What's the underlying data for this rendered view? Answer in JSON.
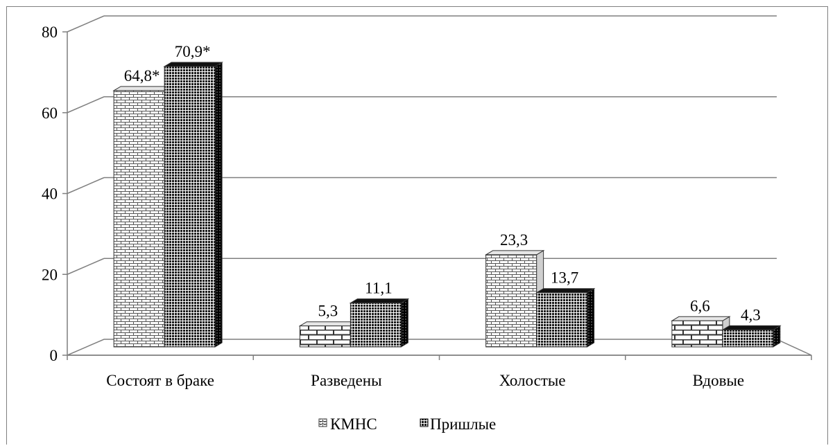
{
  "chart_data": {
    "type": "bar",
    "categories": [
      "Состоят в браке",
      "Разведены",
      "Холостые",
      "Вдовые"
    ],
    "series": [
      {
        "name": "КМНС",
        "values": [
          64.8,
          5.3,
          23.3,
          6.6
        ],
        "labels": [
          "64,8*",
          "5,3",
          "23,3",
          "6,6"
        ],
        "pattern": "brick-small"
      },
      {
        "name": "Пришлые",
        "values": [
          70.9,
          11.1,
          13.7,
          4.3
        ],
        "labels": [
          "70,9*",
          "11,1",
          "13,7",
          "4,3"
        ],
        "pattern": "dark-grid"
      }
    ],
    "yticks": [
      "0",
      "20",
      "40",
      "60",
      "80"
    ],
    "ylim": [
      0,
      80
    ],
    "grid": true,
    "legend_position": "bottom",
    "three_d": true
  },
  "legend": {
    "items": [
      "КМНС",
      "Пришлые"
    ]
  }
}
